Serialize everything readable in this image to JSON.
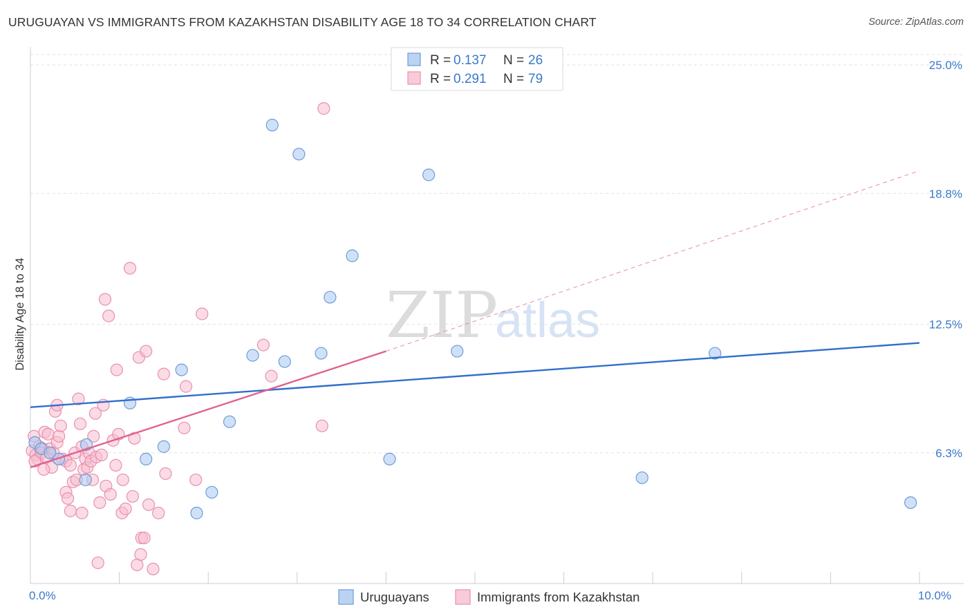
{
  "header": {
    "title": "URUGUAYAN VS IMMIGRANTS FROM KAZAKHSTAN DISABILITY AGE 18 TO 34 CORRELATION CHART",
    "source": "Source: ZipAtlas.com"
  },
  "watermark": {
    "zip": "ZIP",
    "atlas": "atlas"
  },
  "colors": {
    "series_blue_fill": "#aac8f0",
    "series_blue_stroke": "#6d9bd9",
    "series_blue_line": "#2f6fcc",
    "series_pink_fill": "#f7bdd0",
    "series_pink_stroke": "#e890ad",
    "series_pink_line": "#e0628e",
    "axis_label": "#3a78c9",
    "grid": "#e2e2e2"
  },
  "chart_data": {
    "type": "scatter",
    "title": "URUGUAYAN VS IMMIGRANTS FROM KAZAKHSTAN DISABILITY AGE 18 TO 34 CORRELATION CHART",
    "xlabel": "",
    "ylabel": "Disability Age 18 to 34",
    "xlim": [
      0,
      10
    ],
    "ylim": [
      0,
      25.5
    ],
    "x_tick_labels": [
      {
        "value": 0,
        "label": "0.0%"
      },
      {
        "value": 10,
        "label": "10.0%"
      }
    ],
    "y_tick_labels": [
      {
        "value": 6.3,
        "label": "6.3%"
      },
      {
        "value": 12.5,
        "label": "12.5%"
      },
      {
        "value": 18.8,
        "label": "18.8%"
      },
      {
        "value": 25.0,
        "label": "25.0%"
      }
    ],
    "legend_stats": [
      {
        "r_label": "R =",
        "r_value": "0.137",
        "n_label": "N =",
        "n_value": "26"
      },
      {
        "r_label": "R =",
        "r_value": "0.291",
        "n_label": "N =",
        "n_value": "79"
      }
    ],
    "series": [
      {
        "name": "Uruguayans",
        "color": "#aac8f0",
        "trend": {
          "x": [
            0,
            10
          ],
          "y": [
            8.5,
            11.6
          ]
        },
        "points": [
          {
            "x": 0.05,
            "y": 6.8
          },
          {
            "x": 0.12,
            "y": 6.5
          },
          {
            "x": 0.22,
            "y": 6.3
          },
          {
            "x": 0.63,
            "y": 6.7
          },
          {
            "x": 0.62,
            "y": 5.0
          },
          {
            "x": 1.12,
            "y": 8.7
          },
          {
            "x": 1.3,
            "y": 6.0
          },
          {
            "x": 1.5,
            "y": 6.6
          },
          {
            "x": 1.7,
            "y": 10.3
          },
          {
            "x": 1.87,
            "y": 3.4
          },
          {
            "x": 2.04,
            "y": 4.4
          },
          {
            "x": 2.24,
            "y": 7.8
          },
          {
            "x": 2.5,
            "y": 11.0
          },
          {
            "x": 2.72,
            "y": 22.1
          },
          {
            "x": 2.86,
            "y": 10.7
          },
          {
            "x": 3.02,
            "y": 20.7
          },
          {
            "x": 3.27,
            "y": 11.1
          },
          {
            "x": 3.37,
            "y": 13.8
          },
          {
            "x": 3.62,
            "y": 15.8
          },
          {
            "x": 4.04,
            "y": 6.0
          },
          {
            "x": 4.48,
            "y": 19.7
          },
          {
            "x": 4.8,
            "y": 11.2
          },
          {
            "x": 6.88,
            "y": 5.1
          },
          {
            "x": 7.7,
            "y": 11.1
          },
          {
            "x": 9.9,
            "y": 3.9
          },
          {
            "x": 0.32,
            "y": 6.0
          }
        ]
      },
      {
        "name": "Immigrants from Kazakhstan",
        "color": "#f7bdd0",
        "trend": {
          "x": [
            0,
            4.0
          ],
          "y": [
            5.6,
            11.2
          ]
        },
        "trend_extension": {
          "x": [
            4.0,
            10.0
          ],
          "y": [
            11.2,
            19.9
          ]
        },
        "points": [
          {
            "x": 0.02,
            "y": 6.4
          },
          {
            "x": 0.04,
            "y": 7.1
          },
          {
            "x": 0.06,
            "y": 6.2
          },
          {
            "x": 0.08,
            "y": 6.0
          },
          {
            "x": 0.1,
            "y": 6.6
          },
          {
            "x": 0.12,
            "y": 6.3
          },
          {
            "x": 0.14,
            "y": 6.5
          },
          {
            "x": 0.16,
            "y": 7.3
          },
          {
            "x": 0.18,
            "y": 6.1
          },
          {
            "x": 0.2,
            "y": 7.2
          },
          {
            "x": 0.22,
            "y": 6.5
          },
          {
            "x": 0.24,
            "y": 5.6
          },
          {
            "x": 0.26,
            "y": 6.3
          },
          {
            "x": 0.28,
            "y": 8.3
          },
          {
            "x": 0.3,
            "y": 6.8
          },
          {
            "x": 0.3,
            "y": 8.6
          },
          {
            "x": 0.32,
            "y": 7.1
          },
          {
            "x": 0.34,
            "y": 7.6
          },
          {
            "x": 0.36,
            "y": 6.0
          },
          {
            "x": 0.4,
            "y": 5.9
          },
          {
            "x": 0.4,
            "y": 4.4
          },
          {
            "x": 0.42,
            "y": 4.1
          },
          {
            "x": 0.45,
            "y": 3.5
          },
          {
            "x": 0.45,
            "y": 5.7
          },
          {
            "x": 0.48,
            "y": 4.9
          },
          {
            "x": 0.5,
            "y": 6.3
          },
          {
            "x": 0.52,
            "y": 5.0
          },
          {
            "x": 0.54,
            "y": 8.9
          },
          {
            "x": 0.56,
            "y": 7.7
          },
          {
            "x": 0.58,
            "y": 6.6
          },
          {
            "x": 0.6,
            "y": 5.5
          },
          {
            "x": 0.62,
            "y": 6.0
          },
          {
            "x": 0.64,
            "y": 5.6
          },
          {
            "x": 0.66,
            "y": 6.3
          },
          {
            "x": 0.68,
            "y": 5.9
          },
          {
            "x": 0.7,
            "y": 5.0
          },
          {
            "x": 0.71,
            "y": 7.1
          },
          {
            "x": 0.73,
            "y": 8.2
          },
          {
            "x": 0.74,
            "y": 6.1
          },
          {
            "x": 0.76,
            "y": 1.0
          },
          {
            "x": 0.78,
            "y": 3.9
          },
          {
            "x": 0.8,
            "y": 6.2
          },
          {
            "x": 0.82,
            "y": 8.6
          },
          {
            "x": 0.84,
            "y": 13.7
          },
          {
            "x": 0.85,
            "y": 4.7
          },
          {
            "x": 0.88,
            "y": 12.9
          },
          {
            "x": 0.9,
            "y": 4.3
          },
          {
            "x": 0.93,
            "y": 6.9
          },
          {
            "x": 0.96,
            "y": 5.7
          },
          {
            "x": 0.97,
            "y": 10.3
          },
          {
            "x": 0.99,
            "y": 7.2
          },
          {
            "x": 1.03,
            "y": 3.4
          },
          {
            "x": 1.04,
            "y": 5.0
          },
          {
            "x": 1.07,
            "y": 3.6
          },
          {
            "x": 1.12,
            "y": 15.2
          },
          {
            "x": 1.15,
            "y": 4.2
          },
          {
            "x": 1.17,
            "y": 7.0
          },
          {
            "x": 1.2,
            "y": 0.9
          },
          {
            "x": 1.22,
            "y": 10.9
          },
          {
            "x": 1.24,
            "y": 1.4
          },
          {
            "x": 1.25,
            "y": 2.2
          },
          {
            "x": 1.3,
            "y": 11.2
          },
          {
            "x": 1.33,
            "y": 3.8
          },
          {
            "x": 1.38,
            "y": 0.7
          },
          {
            "x": 1.5,
            "y": 10.1
          },
          {
            "x": 1.52,
            "y": 5.3
          },
          {
            "x": 1.73,
            "y": 7.5
          },
          {
            "x": 1.75,
            "y": 9.5
          },
          {
            "x": 1.86,
            "y": 5.0
          },
          {
            "x": 1.93,
            "y": 13.0
          },
          {
            "x": 2.62,
            "y": 11.5
          },
          {
            "x": 2.71,
            "y": 10.0
          },
          {
            "x": 3.3,
            "y": 22.9
          },
          {
            "x": 3.28,
            "y": 7.6
          },
          {
            "x": 0.05,
            "y": 5.9
          },
          {
            "x": 0.15,
            "y": 5.5
          },
          {
            "x": 1.28,
            "y": 2.2
          },
          {
            "x": 1.44,
            "y": 3.4
          },
          {
            "x": 0.58,
            "y": 3.4
          }
        ]
      }
    ]
  },
  "legend": {
    "placement": "bottom-center",
    "items": [
      {
        "label": "Uruguayans"
      },
      {
        "label": "Immigrants from Kazakhstan"
      }
    ]
  }
}
